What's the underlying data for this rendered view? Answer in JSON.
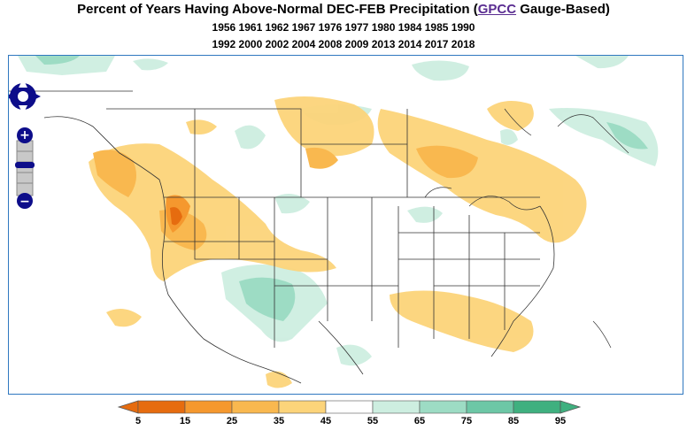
{
  "title": {
    "prefix": "Percent of Years Having Above-Normal DEC-FEB Precipitation (",
    "link": "GPCC",
    "suffix": " Gauge-Based)"
  },
  "years": {
    "line1": "1956 1961 1962 1967 1976 1977 1980 1984 1985 1990",
    "line2": "1992 2000 2002 2004 2008 2009 2013 2014 2017 2018"
  },
  "legend": {
    "labels": [
      "5",
      "15",
      "25",
      "35",
      "45",
      "55",
      "65",
      "75",
      "85",
      "95"
    ],
    "colors": [
      "#e66c0f",
      "#f5982e",
      "#f9b84f",
      "#fcd47a",
      "#fde8b0",
      "#ffffff",
      "#cdeee0",
      "#9ddcc4",
      "#6dc7a6",
      "#3fb07f"
    ]
  },
  "map_controls": {
    "pan_icon": "pan-arrows-icon",
    "zoom_in_label": "+",
    "zoom_out_label": "−"
  }
}
